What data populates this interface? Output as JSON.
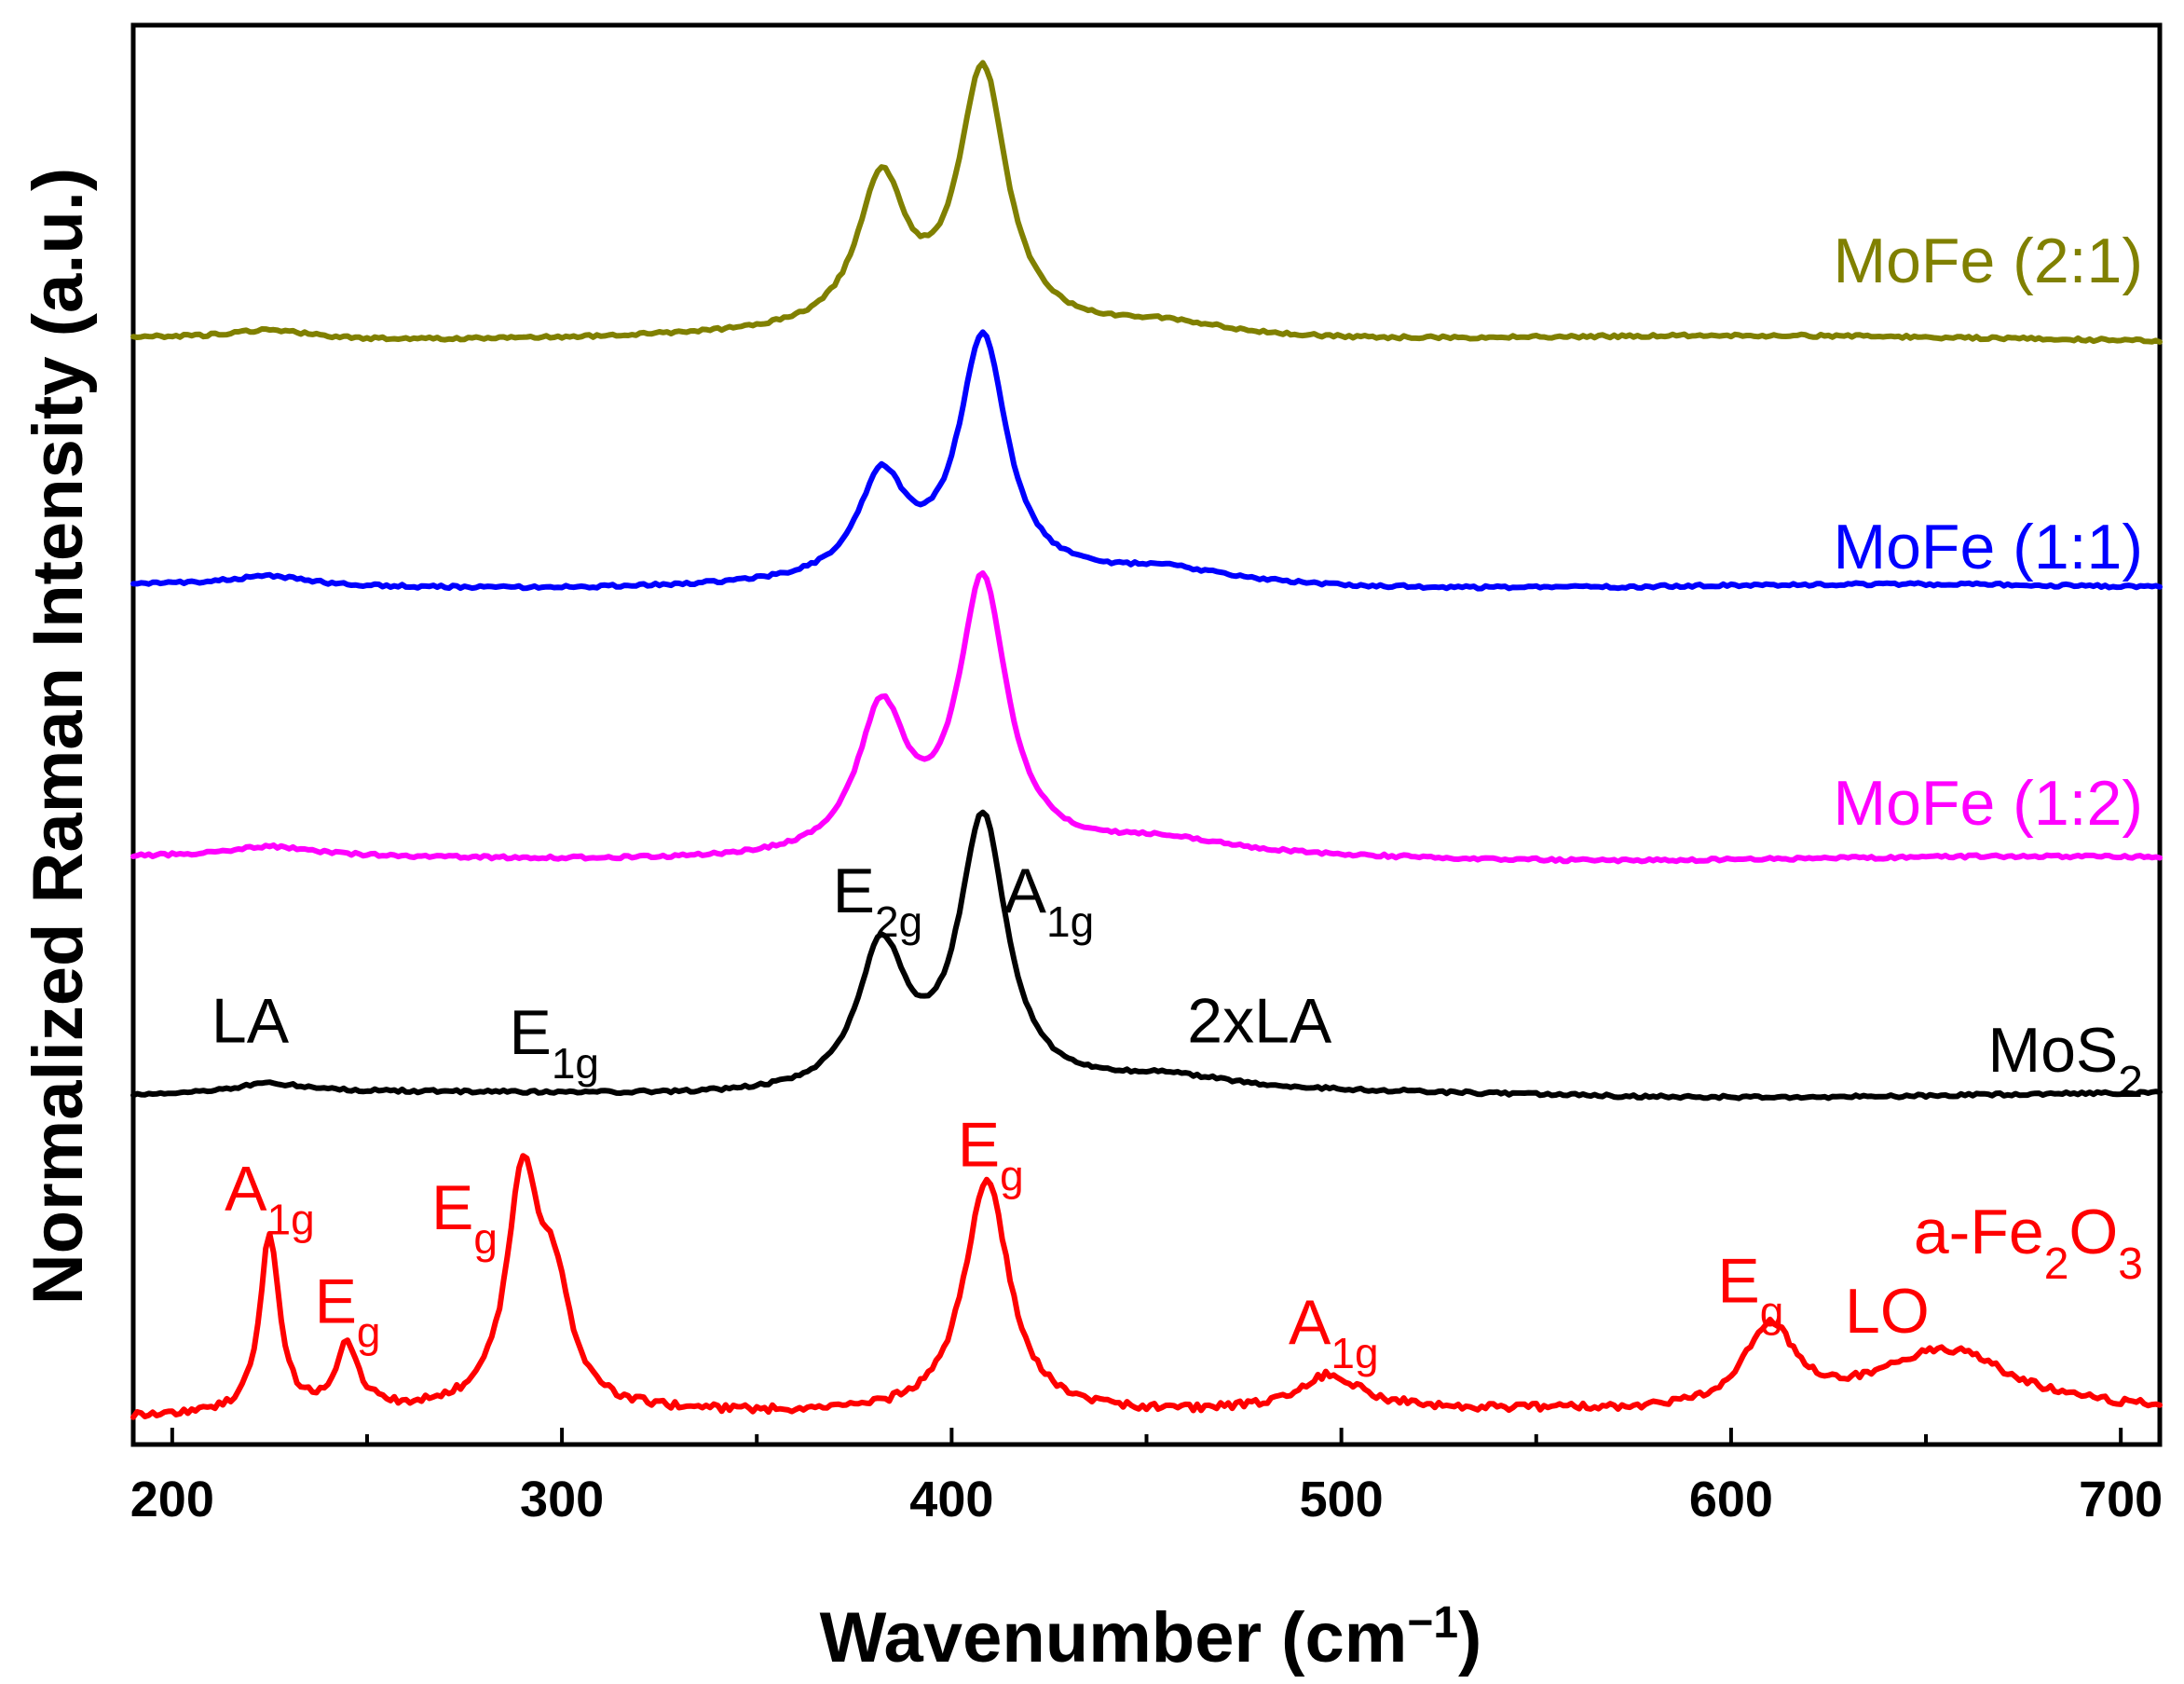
{
  "chart_data": {
    "type": "line",
    "xlabel_main": "Wavenumber (cm",
    "xlabel_sup": "−1",
    "xlabel_close": ")",
    "ylabel": "Normalized Raman Intensity (a.u.)",
    "xlim": [
      190,
      710
    ],
    "ylim": [
      0,
      12
    ],
    "xticks": [
      200,
      300,
      400,
      500,
      600,
      700
    ],
    "y_ticks_shown": false,
    "series": [
      {
        "id": "fe2o3",
        "name_main": "a-Fe",
        "name_sub1": "2",
        "name_mid": "O",
        "name_sub2": "3",
        "color": "#ff0000",
        "baseline": 0.25,
        "peaks": [
          [
            225,
            1.5,
            3
          ],
          [
            245,
            0.55,
            3.5
          ],
          [
            290,
            1.9,
            5
          ],
          [
            298,
            0.9,
            5
          ],
          [
            409,
            2.0,
            7
          ],
          [
            497,
            0.3,
            10
          ],
          [
            610,
            0.7,
            8
          ],
          [
            655,
            0.55,
            22
          ]
        ],
        "peak_labels": [
          {
            "base": "A",
            "sub": "1g",
            "x": 225,
            "y": 1.98
          },
          {
            "base": "E",
            "sub": "g",
            "x": 245,
            "y": 1.03
          },
          {
            "base": "E",
            "sub": "g",
            "x": 275,
            "y": 1.82
          },
          {
            "base": "E",
            "sub": "g",
            "x": 410,
            "y": 2.35
          },
          {
            "base": "A",
            "sub": "1g",
            "x": 498,
            "y": 0.85
          },
          {
            "base": "E",
            "sub": "g",
            "x": 605,
            "y": 1.2
          }
        ]
      },
      {
        "id": "mos2",
        "name_main": "MoS",
        "name_sub1": "2",
        "color": "#000000",
        "baseline": 2.95,
        "peaks": [
          [
            225,
            0.08,
            12
          ],
          [
            382,
            1.2,
            7.5
          ],
          [
            408,
            2.3,
            7.5
          ],
          [
            455,
            0.12,
            20
          ]
        ],
        "peak_labels": [
          {
            "base": "E",
            "sub": "2g",
            "x": 381,
            "y": 4.5
          },
          {
            "base": "A",
            "sub": "1g",
            "x": 425,
            "y": 4.5
          },
          {
            "base": "E",
            "sub": "1g",
            "x": 298,
            "y": 3.3
          },
          {
            "base": "LA",
            "sub": "",
            "x": 220,
            "y": 3.4
          },
          {
            "base": "2xLA",
            "sub": "",
            "x": 479,
            "y": 3.4
          }
        ]
      },
      {
        "id": "mofe12",
        "name_main": "MoFe (1:2)",
        "color": "#ff00ff",
        "baseline": 4.95,
        "peaks": [
          [
            225,
            0.08,
            12
          ],
          [
            382,
            1.2,
            7.5
          ],
          [
            408,
            2.3,
            7.5
          ],
          [
            455,
            0.12,
            20
          ]
        ]
      },
      {
        "id": "mofe11",
        "name_main": "MoFe (1:1)",
        "color": "#0000ff",
        "baseline": 7.25,
        "peaks": [
          [
            225,
            0.08,
            12
          ],
          [
            382,
            0.85,
            7.5
          ],
          [
            408,
            2.05,
            7.5
          ],
          [
            455,
            0.12,
            20
          ]
        ]
      },
      {
        "id": "mofe21",
        "name_main": "MoFe (2:1)",
        "color": "#808000",
        "baseline": 9.35,
        "peaks": [
          [
            225,
            0.08,
            12
          ],
          [
            382,
            1.25,
            7.5
          ],
          [
            408,
            2.2,
            7.5
          ],
          [
            455,
            0.12,
            20
          ]
        ]
      }
    ],
    "fe2o3_extra_label": "LO"
  }
}
